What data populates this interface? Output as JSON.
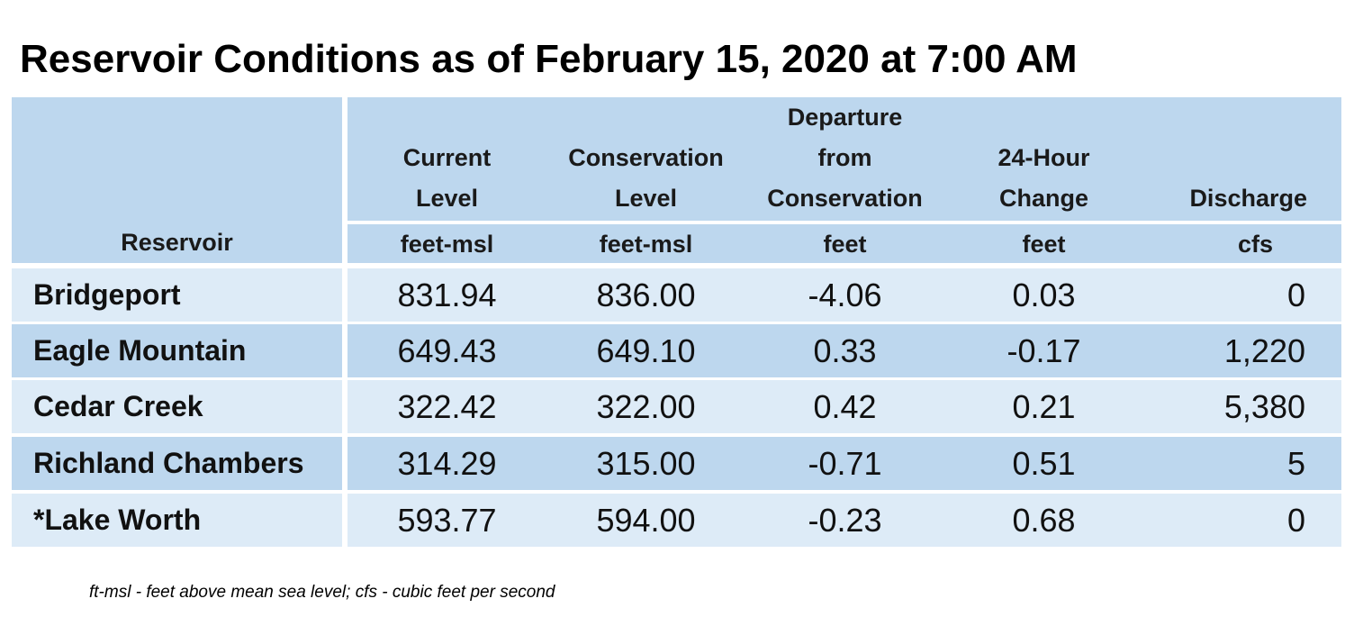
{
  "title": "Reservoir Conditions as of February 15, 2020 at 7:00 AM",
  "columns": [
    {
      "label_lines": [
        "",
        "",
        "",
        "Reservoir"
      ],
      "unit": ""
    },
    {
      "label_lines": [
        "",
        "Current",
        "Level"
      ],
      "unit": "feet-msl"
    },
    {
      "label_lines": [
        "",
        "Conservation",
        "Level"
      ],
      "unit": "feet-msl"
    },
    {
      "label_lines": [
        "Departure",
        "from",
        "Conservation"
      ],
      "unit": "feet"
    },
    {
      "label_lines": [
        "",
        "24-Hour",
        "Change"
      ],
      "unit": "feet"
    },
    {
      "label_lines": [
        "",
        "",
        "Discharge"
      ],
      "unit": "cfs"
    }
  ],
  "header": {
    "reservoir": "Reservoir",
    "current_l1": "Current",
    "current_l2": "Level",
    "current_unit": "feet-msl",
    "conservation_l1": "Conservation",
    "conservation_l2": "Level",
    "conservation_unit": "feet-msl",
    "departure_l1": "Departure",
    "departure_l2": "from",
    "departure_l3": "Conservation",
    "departure_unit": "feet",
    "change_l1": "24-Hour",
    "change_l2": "Change",
    "change_unit": "feet",
    "discharge_l1": "Discharge",
    "discharge_unit": "cfs"
  },
  "rows": [
    {
      "name": "Bridgeport",
      "current": "831.94",
      "conservation": "836.00",
      "departure": "-4.06",
      "change": "0.03",
      "discharge": "0"
    },
    {
      "name": "Eagle Mountain",
      "current": "649.43",
      "conservation": "649.10",
      "departure": "0.33",
      "change": "-0.17",
      "discharge": "1,220"
    },
    {
      "name": "Cedar Creek",
      "current": "322.42",
      "conservation": "322.00",
      "departure": "0.42",
      "change": "0.21",
      "discharge": "5,380"
    },
    {
      "name": "Richland Chambers",
      "current": "314.29",
      "conservation": "315.00",
      "departure": "-0.71",
      "change": "0.51",
      "discharge": "5"
    },
    {
      "name": "*Lake Worth",
      "current": "593.77",
      "conservation": "594.00",
      "departure": "-0.23",
      "change": "0.68",
      "discharge": "0"
    }
  ],
  "footnote": "ft-msl - feet above mean sea level; cfs - cubic feet per second",
  "colors": {
    "header_bg": "#bdd7ee",
    "row_light": "#ddebf7",
    "row_dark": "#bdd7ee"
  }
}
